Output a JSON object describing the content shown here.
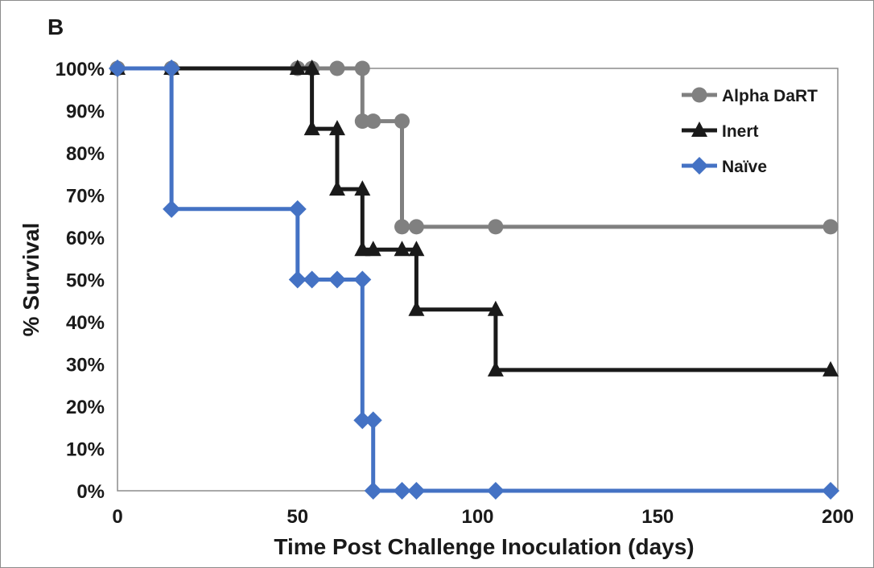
{
  "chart_data": {
    "type": "line",
    "panel_label": "B",
    "xlabel": "Time Post Challenge Inoculation (days)",
    "ylabel": "% Survival",
    "xlim": [
      0,
      200
    ],
    "ylim": [
      0,
      100
    ],
    "x_ticks": [
      0,
      50,
      100,
      150,
      200
    ],
    "y_ticks": [
      0,
      10,
      20,
      30,
      40,
      50,
      60,
      70,
      80,
      90,
      100
    ],
    "y_tick_suffix": "%",
    "step": true,
    "grid": false,
    "legend_position": "top-right",
    "series": [
      {
        "name": "Alpha DaRT",
        "color": "#808080",
        "marker": "circle",
        "points": [
          [
            0,
            100
          ],
          [
            15,
            100
          ],
          [
            50,
            100
          ],
          [
            54,
            100
          ],
          [
            61,
            100
          ],
          [
            68,
            100
          ],
          [
            68,
            87.5
          ],
          [
            71,
            87.5
          ],
          [
            79,
            87.5
          ],
          [
            79,
            62.5
          ],
          [
            83,
            62.5
          ],
          [
            105,
            62.5
          ],
          [
            198,
            62.5
          ]
        ]
      },
      {
        "name": "Inert",
        "color": "#1a1a1a",
        "marker": "triangle",
        "points": [
          [
            0,
            100
          ],
          [
            15,
            100
          ],
          [
            50,
            100
          ],
          [
            54,
            100
          ],
          [
            54,
            85.7
          ],
          [
            61,
            85.7
          ],
          [
            61,
            71.4
          ],
          [
            68,
            71.4
          ],
          [
            68,
            57.1
          ],
          [
            71,
            57.1
          ],
          [
            79,
            57.1
          ],
          [
            83,
            57.1
          ],
          [
            83,
            42.9
          ],
          [
            105,
            42.9
          ],
          [
            105,
            28.6
          ],
          [
            198,
            28.6
          ]
        ]
      },
      {
        "name": "Naïve",
        "color": "#4472c4",
        "marker": "diamond",
        "points": [
          [
            0,
            100
          ],
          [
            15,
            100
          ],
          [
            15,
            66.7
          ],
          [
            50,
            66.7
          ],
          [
            50,
            50
          ],
          [
            54,
            50
          ],
          [
            61,
            50
          ],
          [
            68,
            50
          ],
          [
            68,
            16.7
          ],
          [
            71,
            16.7
          ],
          [
            71,
            0
          ],
          [
            79,
            0
          ],
          [
            83,
            0
          ],
          [
            105,
            0
          ],
          [
            198,
            0
          ]
        ]
      }
    ]
  }
}
